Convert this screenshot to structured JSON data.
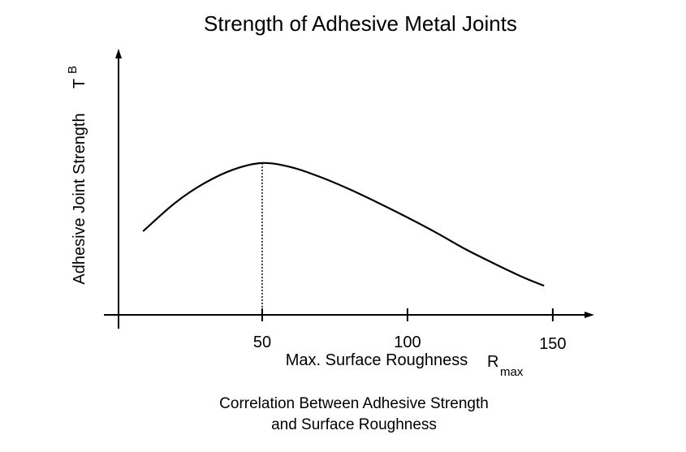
{
  "chart_data": {
    "type": "line",
    "title": "Strength of Adhesive Metal Joints",
    "y_label": "Adhesive Joint Strength",
    "y_symbol": "T",
    "y_symbol_sub": "B",
    "x_label": "Max. Surface Roughness",
    "x_symbol": "R",
    "x_symbol_sub": "max",
    "caption": [
      "Correlation Between Adhesive Strength",
      "and Surface Roughness"
    ],
    "x": [
      9,
      20,
      30,
      40,
      50,
      60,
      70,
      80,
      90,
      100,
      110,
      120,
      130,
      140,
      147
    ],
    "values": [
      31.6,
      42.3,
      49.7,
      54.9,
      57.4,
      55.8,
      52.1,
      47.5,
      42.3,
      36.8,
      31.0,
      24.8,
      19.3,
      14.1,
      11.0
    ],
    "peak_index": 4,
    "color": "#000000",
    "xlim": [
      0,
      164
    ],
    "ylim": [
      0,
      100
    ],
    "xticks": [
      50,
      100,
      150
    ],
    "grid": false
  }
}
